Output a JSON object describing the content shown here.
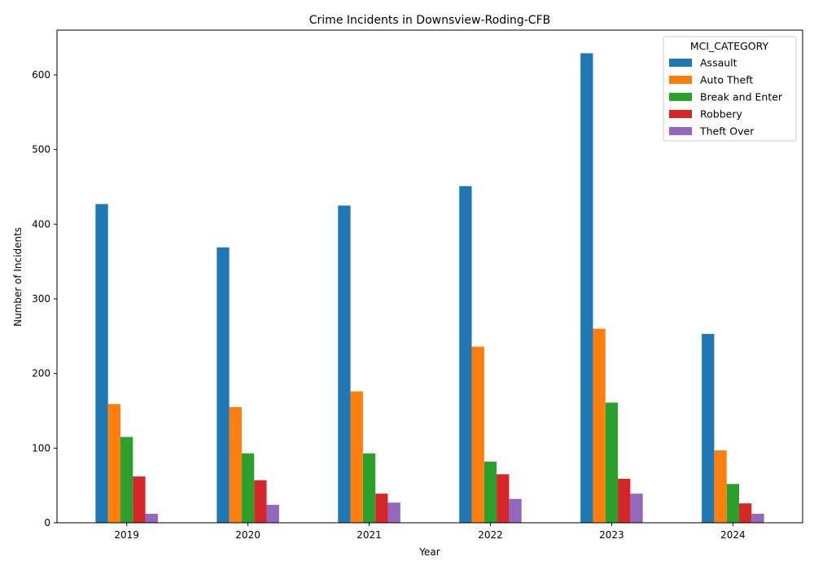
{
  "chart_data": {
    "type": "bar",
    "title": "Crime Incidents in Downsview-Roding-CFB",
    "xlabel": "Year",
    "ylabel": "Number of Incidents",
    "categories": [
      "2019",
      "2020",
      "2021",
      "2022",
      "2023",
      "2024"
    ],
    "ylim": [
      0,
      660
    ],
    "yticks": [
      0,
      100,
      200,
      300,
      400,
      500,
      600
    ],
    "legend_title": "MCI_CATEGORY",
    "legend_position": "top-right",
    "grid": false,
    "series": [
      {
        "name": "Assault",
        "color": "#1f77b4",
        "values": [
          427,
          369,
          425,
          451,
          629,
          253
        ]
      },
      {
        "name": "Auto Theft",
        "color": "#ff7f0e",
        "values": [
          159,
          155,
          176,
          236,
          260,
          97
        ]
      },
      {
        "name": "Break and Enter",
        "color": "#2ca02c",
        "values": [
          115,
          93,
          93,
          82,
          161,
          52
        ]
      },
      {
        "name": "Robbery",
        "color": "#d62728",
        "values": [
          62,
          57,
          39,
          65,
          59,
          26
        ]
      },
      {
        "name": "Theft Over",
        "color": "#9467bd",
        "values": [
          12,
          24,
          27,
          32,
          39,
          12
        ]
      }
    ]
  }
}
